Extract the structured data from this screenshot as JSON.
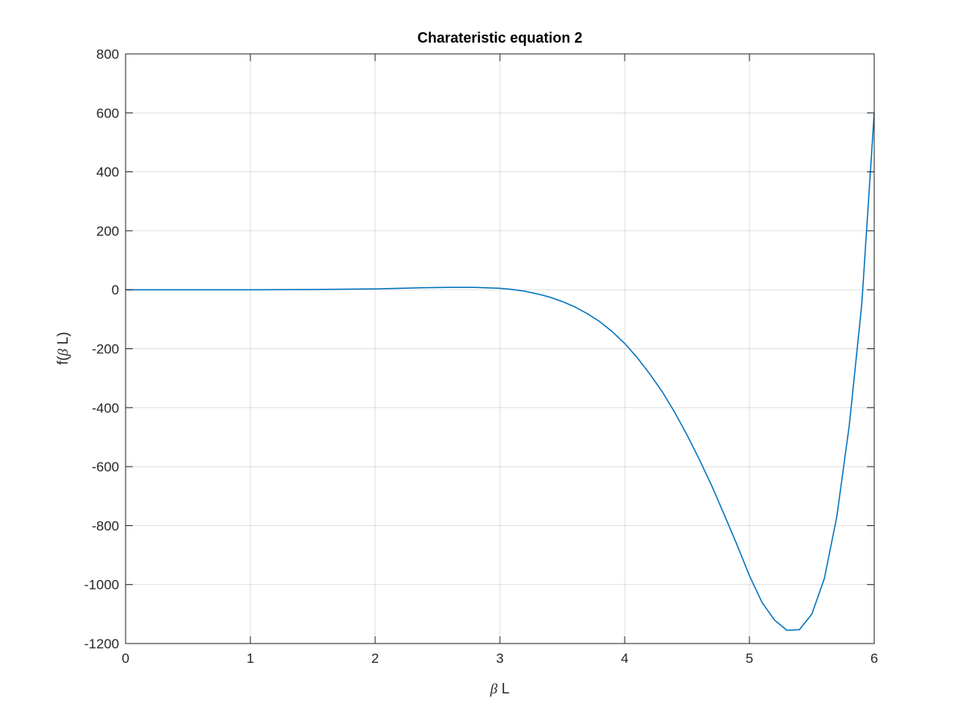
{
  "chart_data": {
    "type": "line",
    "title": "Charateristic equation 2",
    "xlabel_symbol": "β",
    "xlabel_rest": " L",
    "ylabel_prefix": "f(",
    "ylabel_symbol": "β",
    "ylabel_suffix": " L)",
    "xlim": [
      0,
      6
    ],
    "ylim": [
      -1200,
      800
    ],
    "xticks": [
      0,
      1,
      2,
      3,
      4,
      5,
      6
    ],
    "yticks": [
      -1200,
      -1000,
      -800,
      -600,
      -400,
      -200,
      0,
      200,
      400,
      600,
      800
    ],
    "grid": true,
    "line_color": "#0072BD",
    "series": [
      {
        "x": [
          0,
          0.5,
          1.0,
          1.5,
          2.0,
          2.2,
          2.4,
          2.6,
          2.8,
          3.0,
          3.1,
          3.2,
          3.3,
          3.4,
          3.5,
          3.6,
          3.7,
          3.8,
          3.9,
          4.0,
          4.1,
          4.2,
          4.3,
          4.4,
          4.5,
          4.6,
          4.7,
          4.8,
          4.9,
          5.0,
          5.1,
          5.2,
          5.3,
          5.4,
          5.5,
          5.6,
          5.7,
          5.8,
          5.9,
          6.0
        ],
        "y": [
          0,
          0,
          0,
          1,
          3,
          5,
          7,
          8,
          8,
          5,
          1,
          -5,
          -14,
          -25,
          -40,
          -58,
          -81,
          -108,
          -142,
          -182,
          -230,
          -285,
          -345,
          -415,
          -493,
          -577,
          -667,
          -765,
          -865,
          -970,
          -1060,
          -1120,
          -1155,
          -1153,
          -1100,
          -980,
          -770,
          -460,
          -50,
          600
        ]
      }
    ]
  }
}
